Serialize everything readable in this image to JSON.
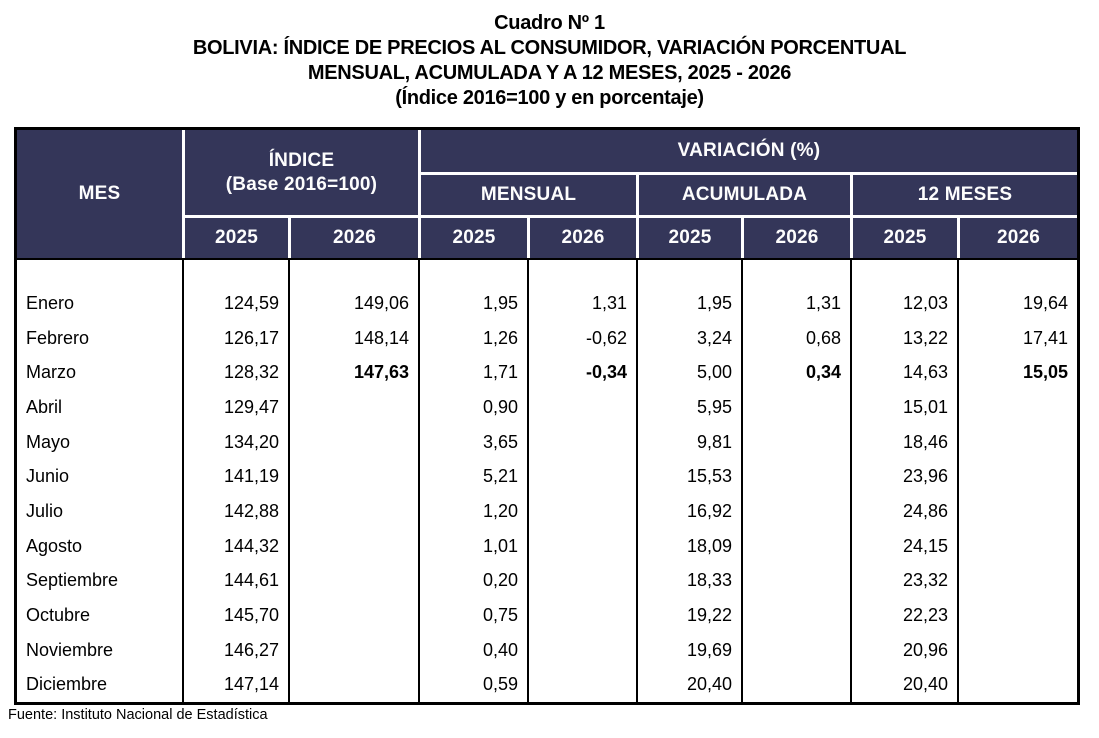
{
  "title_lines": [
    "Cuadro Nº 1",
    "BOLIVIA: ÍNDICE DE PRECIOS AL CONSUMIDOR, VARIACIÓN PORCENTUAL",
    "MENSUAL, ACUMULADA Y A 12 MESES, 2025 - 2026",
    "(Índice 2016=100 y en porcentaje)"
  ],
  "colors": {
    "header_bg": "#343659",
    "header_text": "#FDFDFD",
    "border": "#000000"
  },
  "table": {
    "header": {
      "mes": "MES",
      "indice_title": "ÍNDICE",
      "indice_subtitle": "(Base 2016=100)",
      "variacion": "VARIACIÓN (%)",
      "groups": [
        "MENSUAL",
        "ACUMULADA",
        "12 MESES"
      ],
      "years": [
        "2025",
        "2026",
        "2025",
        "2026",
        "2025",
        "2026",
        "2025",
        "2026"
      ]
    },
    "rows": [
      {
        "month": "Enero",
        "values": [
          "124,59",
          "149,06",
          "1,95",
          "1,31",
          "1,95",
          "1,31",
          "12,03",
          "19,64"
        ]
      },
      {
        "month": "Febrero",
        "values": [
          "126,17",
          "148,14",
          "1,26",
          "-0,62",
          "3,24",
          "0,68",
          "13,22",
          "17,41"
        ]
      },
      {
        "month": "Marzo",
        "values": [
          "128,32",
          "147,63",
          "1,71",
          "-0,34",
          "5,00",
          "0,34",
          "14,63",
          "15,05"
        ]
      },
      {
        "month": "Abril",
        "values": [
          "129,47",
          "",
          "0,90",
          "",
          "5,95",
          "",
          "15,01",
          ""
        ]
      },
      {
        "month": "Mayo",
        "values": [
          "134,20",
          "",
          "3,65",
          "",
          "9,81",
          "",
          "18,46",
          ""
        ]
      },
      {
        "month": "Junio",
        "values": [
          "141,19",
          "",
          "5,21",
          "",
          "15,53",
          "",
          "23,96",
          ""
        ]
      },
      {
        "month": "Julio",
        "values": [
          "142,88",
          "",
          "1,20",
          "",
          "16,92",
          "",
          "24,86",
          ""
        ]
      },
      {
        "month": "Agosto",
        "values": [
          "144,32",
          "",
          "1,01",
          "",
          "18,09",
          "",
          "24,15",
          ""
        ]
      },
      {
        "month": "Septiembre",
        "values": [
          "144,61",
          "",
          "0,20",
          "",
          "18,33",
          "",
          "23,32",
          ""
        ]
      },
      {
        "month": "Octubre",
        "values": [
          "145,70",
          "",
          "0,75",
          "",
          "19,22",
          "",
          "22,23",
          ""
        ]
      },
      {
        "month": "Noviembre",
        "values": [
          "146,27",
          "",
          "0,40",
          "",
          "19,69",
          "",
          "20,96",
          ""
        ]
      },
      {
        "month": "Diciembre",
        "values": [
          "147,14",
          "",
          "0,59",
          "",
          "20,40",
          "",
          "20,40",
          ""
        ]
      }
    ]
  },
  "source": "Fuente: Instituto Nacional de Estadística"
}
